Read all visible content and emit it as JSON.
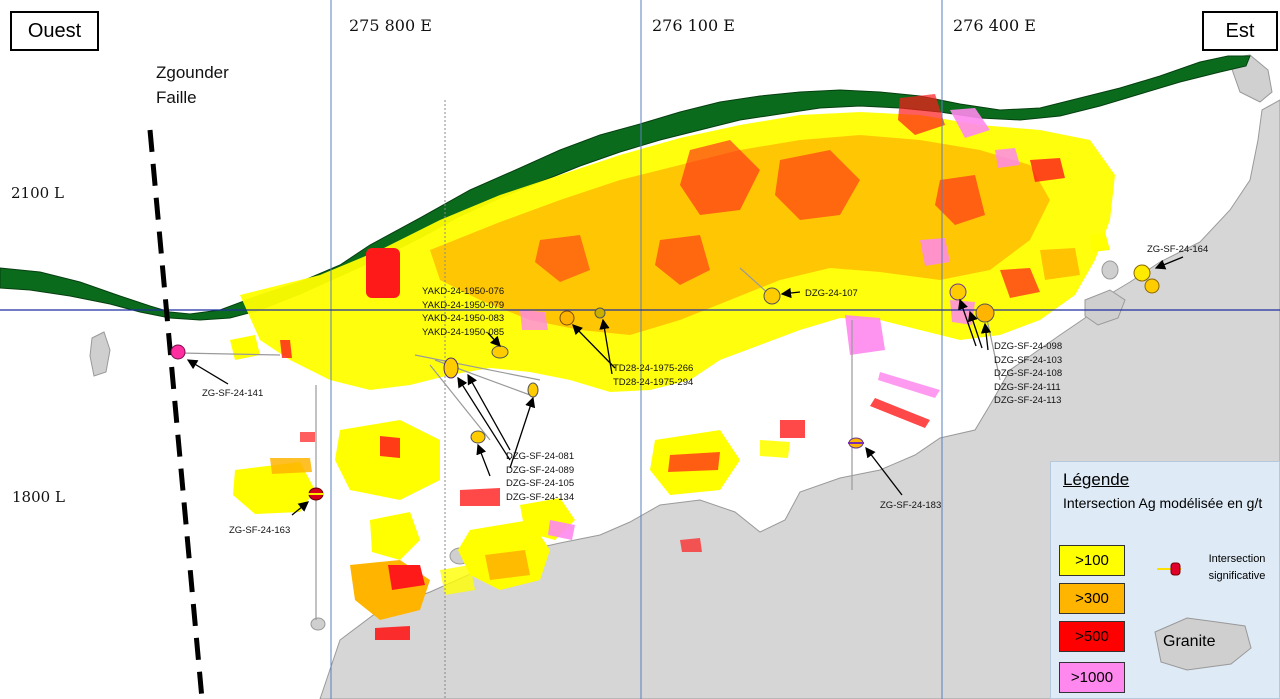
{
  "orientation": {
    "west": "Ouest",
    "east": "Est"
  },
  "eastings": [
    "275 800 E",
    "276 100 E",
    "276 400 E"
  ],
  "levels": [
    "2100 L",
    "1800 L"
  ],
  "fault_label": {
    "line1": "Zgounder",
    "line2": "Faille"
  },
  "drill_holes": {
    "zg_sf_24_141": "ZG-SF-24-141",
    "zg_sf_24_163": "ZG-SF-24-163",
    "zg_sf_24_164": "ZG-SF-24-164",
    "zg_sf_24_183": "ZG-SF-24-183",
    "dzg_24_107": "DZG-24-107",
    "yakd_group": [
      "YAKD-24-1950-076",
      "YAKD-24-1950-079",
      "YAKD-24-1950-083",
      "YAKD-24-1950-085"
    ],
    "td28_group": [
      "TD28-24-1975-266",
      "TD28-24-1975-294"
    ],
    "dzg_sf_group_a": [
      "DZG-SF-24-081",
      "DZG-SF-24-089",
      "DZG-SF-24-105",
      "DZG-SF-24-134"
    ],
    "dzg_sf_group_b": [
      "DZG-SF-24-098",
      "DZG-SF-24-103",
      "DZG-SF-24-108",
      "DZG-SF-24-111",
      "DZG-SF-24-113"
    ]
  },
  "legend": {
    "title": "Légende",
    "subtitle": "Intersection Ag modélisée en g/t",
    "grades": [
      {
        "label": ">100",
        "color": "#ffff00"
      },
      {
        "label": ">300",
        "color": "#ffb400"
      },
      {
        "label": ">500",
        "color": "#ff0000"
      },
      {
        "label": ">1000",
        "color": "#ff88ee"
      }
    ],
    "intersection_label": "Intersection significative",
    "granite_label": "Granite"
  },
  "colors": {
    "grade_100": "#ffff00",
    "grade_300": "#ffb400",
    "grade_500": "#ff1a1a",
    "grade_1000": "#ff88ee",
    "surface": "#0b6b1d",
    "granite": "#d4d4d4",
    "grid_line": "#5b7fbf",
    "level_line": "#1f2fa0"
  }
}
